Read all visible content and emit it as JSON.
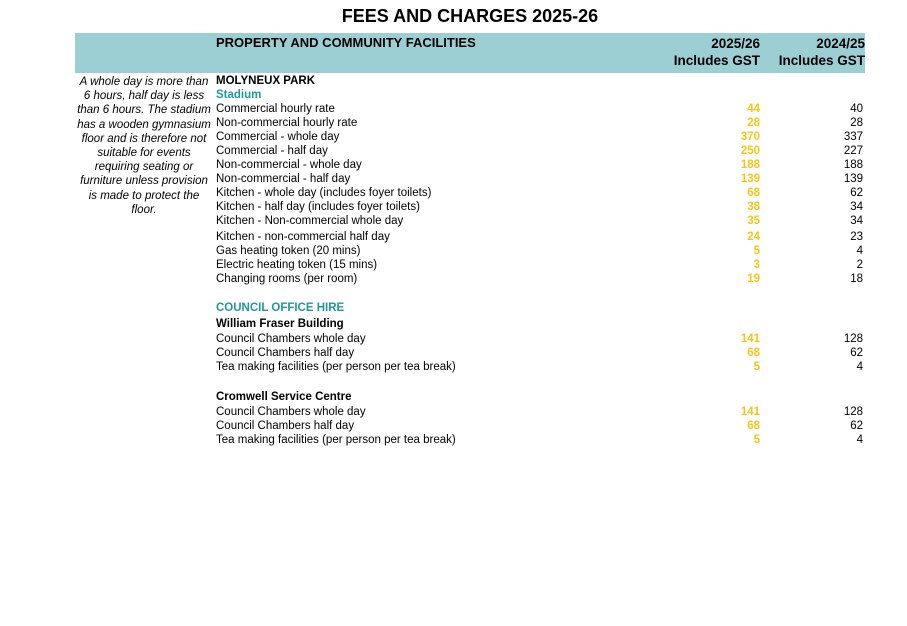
{
  "title": "FEES AND CHARGES 2025-26",
  "header": {
    "section": "PROPERTY AND COMMUNITY FACILITIES",
    "col_current_year": "2025/26",
    "col_current_note": "Includes GST",
    "col_prev_year": "2024/25",
    "col_prev_note": "Includes GST"
  },
  "note": "A whole day is more than 6 hours, half day is less than 6 hours. The stadium has a wooden gymnasium floor and is therefore not suitable for events requiring seating or furniture unless provision is made to protect the floor.",
  "rows": [
    {
      "label": "MOLYNEUX PARK",
      "style": "bold",
      "v25": "",
      "v24": ""
    },
    {
      "label": "Stadium",
      "style": "teal",
      "v25": "",
      "v24": ""
    },
    {
      "label": "Commercial hourly rate",
      "style": "",
      "v25": "44",
      "v24": "40"
    },
    {
      "label": "Non-commercial hourly rate",
      "style": "",
      "v25": "28",
      "v24": "28"
    },
    {
      "label": "Commercial - whole day",
      "style": "",
      "v25": "370",
      "v24": "337"
    },
    {
      "label": "Commercial - half day",
      "style": "",
      "v25": "250",
      "v24": "227"
    },
    {
      "label": "Non-commercial - whole day",
      "style": "",
      "v25": "188",
      "v24": "188"
    },
    {
      "label": "Non-commercial - half day",
      "style": "",
      "v25": "139",
      "v24": "139"
    },
    {
      "label": "Kitchen - whole day (includes foyer toilets)",
      "style": "",
      "v25": "68",
      "v24": "62"
    },
    {
      "label": "Kitchen - half day (includes foyer toilets)",
      "style": "",
      "v25": "38",
      "v24": "34"
    },
    {
      "label": "Kitchen - Non-commercial whole day",
      "style": "",
      "v25": "35",
      "v24": "34"
    },
    {
      "label": "Kitchen - non-commercial half day",
      "style": "",
      "v25": "24",
      "v24": "23"
    },
    {
      "label": "Gas heating token (20 mins)",
      "style": "",
      "v25": "5",
      "v24": "4"
    },
    {
      "label": "Electric heating token (15 mins)",
      "style": "",
      "v25": "3",
      "v24": "2"
    },
    {
      "label": "Changing rooms (per room)",
      "style": "",
      "v25": "19",
      "v24": "18"
    },
    {
      "label": "COUNCIL OFFICE HIRE",
      "style": "teal",
      "v25": "",
      "v24": ""
    },
    {
      "label": "William Fraser Building",
      "style": "bold",
      "v25": "",
      "v24": ""
    },
    {
      "label": "Council Chambers whole day",
      "style": "",
      "v25": "141",
      "v24": "128"
    },
    {
      "label": "Council Chambers half day",
      "style": "",
      "v25": "68",
      "v24": "62"
    },
    {
      "label": "Tea making facilities (per person per tea break)",
      "style": "",
      "v25": "5",
      "v24": "4"
    },
    {
      "label": "Cromwell Service Centre",
      "style": "bold",
      "v25": "",
      "v24": ""
    },
    {
      "label": "Council Chambers whole day",
      "style": "",
      "v25": "141",
      "v24": "128"
    },
    {
      "label": "Council Chambers half day",
      "style": "",
      "v25": "68",
      "v24": "62"
    },
    {
      "label": "Tea making facilities (per person per tea break)",
      "style": "",
      "v25": "5",
      "v24": "4"
    }
  ]
}
